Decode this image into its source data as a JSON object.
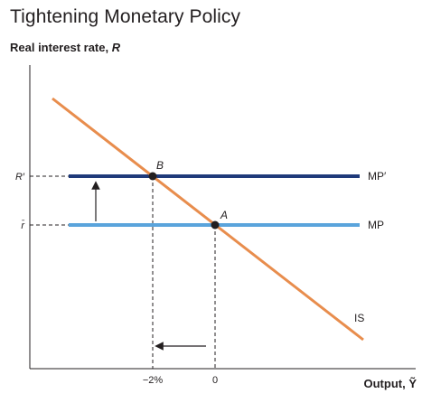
{
  "title": "Tightening Monetary Policy",
  "y_axis_label": "Real interest rate, ",
  "y_axis_var": "R",
  "x_axis_label": "Output, Ỹ",
  "y_ticks": {
    "r_prime": "R′",
    "r_bar": "r̄"
  },
  "x_ticks": {
    "minus2": "−2%",
    "zero": "0"
  },
  "curves": {
    "mp_prime": "MP′",
    "mp": "MP",
    "is": "IS"
  },
  "points": {
    "a": "A",
    "b": "B"
  },
  "colors": {
    "mp_prime": "#1f3a7a",
    "mp": "#5aa4dc",
    "is": "#e88d4d",
    "axis": "#231f20"
  }
}
